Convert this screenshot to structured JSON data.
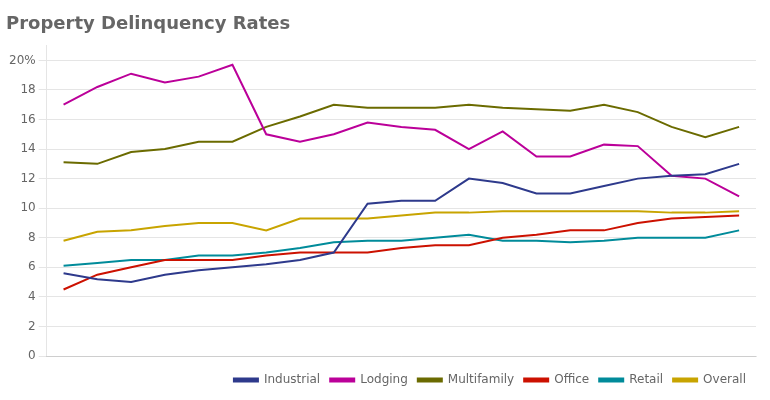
{
  "chart_data": {
    "type": "line",
    "title": "Property Delinquency Rates",
    "categories": [
      null,
      null,
      null,
      null,
      null,
      null,
      null,
      null,
      null,
      null,
      null,
      null,
      null,
      null,
      null,
      null,
      null,
      null,
      null,
      null,
      null
    ],
    "series": [
      {
        "name": "Industrial",
        "color": "#2e3a8c",
        "values": [
          5.6,
          5.2,
          5.0,
          5.5,
          5.8,
          6.0,
          6.2,
          6.5,
          7.0,
          10.3,
          10.5,
          10.5,
          12.0,
          11.7,
          11.0,
          11.0,
          11.5,
          12.0,
          12.2,
          12.3,
          13.0
        ]
      },
      {
        "name": "Lodging",
        "color": "#bb0099",
        "values": [
          17.0,
          18.2,
          19.1,
          18.5,
          18.9,
          19.7,
          15.0,
          14.5,
          15.0,
          15.8,
          15.5,
          15.3,
          14.0,
          15.2,
          13.5,
          13.5,
          14.3,
          14.2,
          12.2,
          12.0,
          10.8
        ]
      },
      {
        "name": "Multifamily",
        "color": "#6b6b00",
        "values": [
          13.1,
          13.0,
          13.8,
          14.0,
          14.5,
          14.5,
          15.5,
          16.2,
          17.0,
          16.8,
          16.8,
          16.8,
          17.0,
          16.8,
          16.7,
          16.6,
          17.0,
          16.5,
          15.5,
          14.8,
          15.5
        ]
      },
      {
        "name": "Office",
        "color": "#cc1100",
        "values": [
          4.5,
          5.5,
          6.0,
          6.5,
          6.5,
          6.5,
          6.8,
          7.0,
          7.0,
          7.0,
          7.3,
          7.5,
          7.5,
          8.0,
          8.2,
          8.5,
          8.5,
          9.0,
          9.3,
          9.4,
          9.5
        ]
      },
      {
        "name": "Retail",
        "color": "#008b9a",
        "values": [
          6.1,
          6.3,
          6.5,
          6.5,
          6.8,
          6.8,
          7.0,
          7.3,
          7.7,
          7.8,
          7.8,
          8.0,
          8.2,
          7.8,
          7.8,
          7.7,
          7.8,
          8.0,
          8.0,
          8.0,
          8.5
        ]
      },
      {
        "name": "Overall",
        "color": "#c8a400",
        "values": [
          7.8,
          8.4,
          8.5,
          8.8,
          9.0,
          9.0,
          8.5,
          9.3,
          9.3,
          9.3,
          9.5,
          9.7,
          9.7,
          9.8,
          9.8,
          9.8,
          9.8,
          9.8,
          9.7,
          9.7,
          9.8
        ]
      }
    ],
    "ylim": [
      0,
      21
    ],
    "yticks": [
      0,
      2,
      4,
      6,
      8,
      10,
      12,
      14,
      16,
      18,
      {
        "value": 20,
        "label": "20%"
      }
    ],
    "grid": "y",
    "legend": "lower right",
    "tick_labels": "y"
  }
}
